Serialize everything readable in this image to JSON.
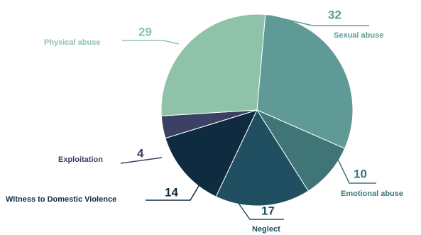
{
  "chart_data": {
    "type": "pie",
    "categories": [
      "Sexual abuse",
      "Emotional abuse",
      "Neglect",
      "Witness to Domestic Violence",
      "Exploitation",
      "Physical abuse"
    ],
    "values": [
      32,
      10,
      17,
      14,
      4,
      29
    ],
    "colors": [
      "#5f9a96",
      "#3f7576",
      "#1f4f60",
      "#0e2b3f",
      "#3c4064",
      "#8fc3a9"
    ]
  }
}
